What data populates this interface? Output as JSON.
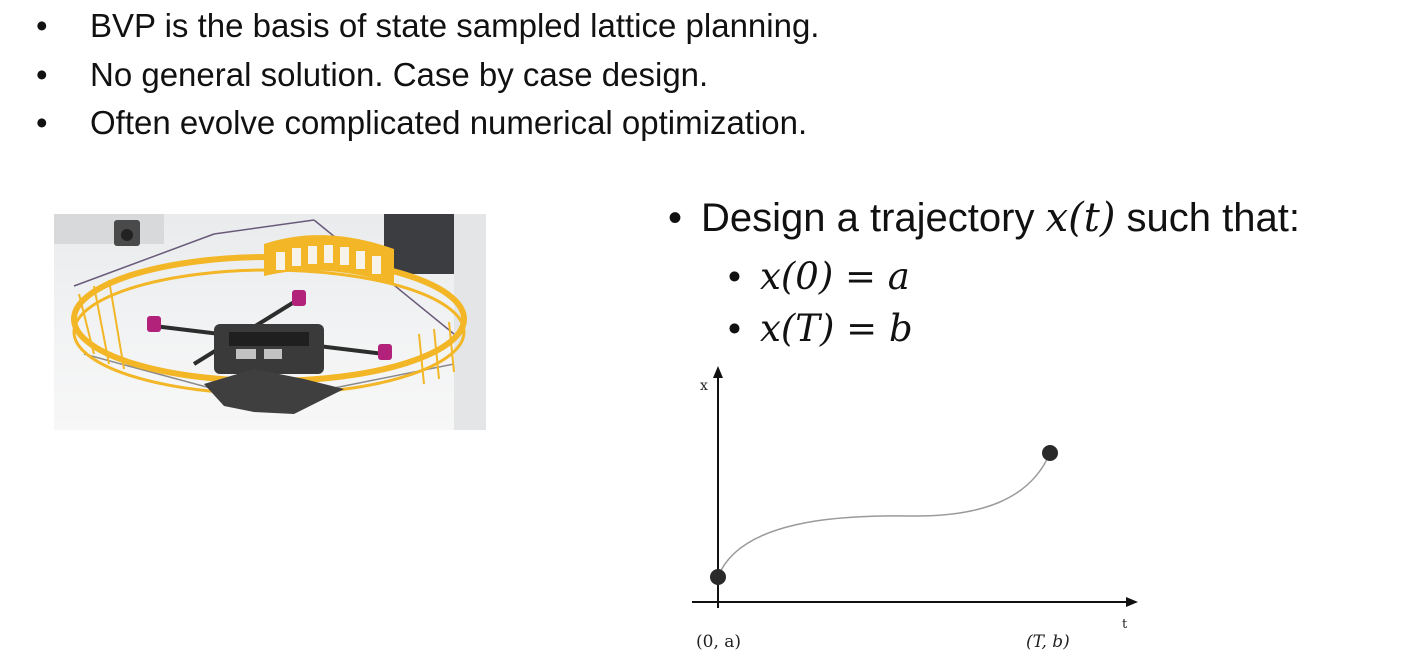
{
  "bullets": [
    {
      "marker": "•",
      "text": "BVP is the basis of state sampled lattice planning."
    },
    {
      "marker": "•",
      "text": "No general solution. Case by case design."
    },
    {
      "marker": "•",
      "text": "Often evolve complicated numerical optimization."
    }
  ],
  "design": {
    "marker": "•",
    "text_prefix": "Design a trajectory ",
    "math": "x(t)",
    "text_suffix": " such that:",
    "conditions": [
      {
        "marker": "•",
        "math": "x(0) = a"
      },
      {
        "marker": "•",
        "math": "x(T) = b"
      }
    ]
  },
  "figure": {
    "photo_icon": "quadrotor-drone-photo",
    "plot": {
      "x_axis_label": "t",
      "y_axis_label": "x",
      "start_label": "(0, a)",
      "end_label": "(T, b)",
      "start_point": {
        "t": 0,
        "x": "a"
      },
      "end_point": {
        "t": "T",
        "x": "b"
      }
    }
  },
  "colors": {
    "text": "#111111",
    "frame_yellow": "#f2b626",
    "motor_magenta": "#b2227a",
    "curve_gray": "#9a9a9a",
    "point_dark": "#2a2a2a"
  }
}
